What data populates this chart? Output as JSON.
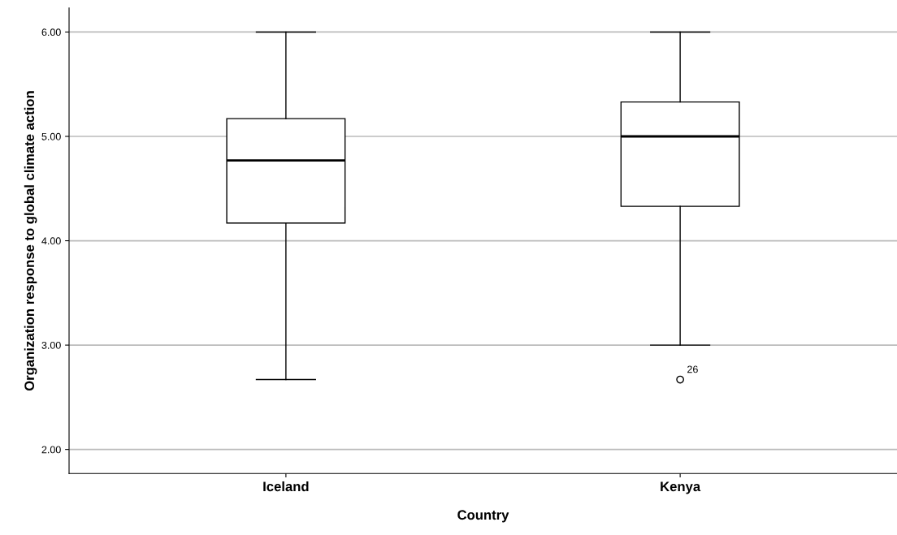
{
  "chart_data": {
    "type": "box",
    "xlabel": "Country",
    "ylabel": "Organization response to global climate action",
    "categories": [
      "Iceland",
      "Kenya"
    ],
    "boxes": [
      {
        "low": 2.67,
        "q1": 4.17,
        "median": 4.77,
        "q3": 5.17,
        "high": 6.0
      },
      {
        "low": 3.0,
        "q1": 4.33,
        "median": 5.0,
        "q3": 5.33,
        "high": 6.0,
        "outliers": [
          2.67
        ]
      }
    ],
    "ylim": [
      1.77,
      6.23
    ],
    "yticks": [
      {
        "value": 2,
        "label": "2.00"
      },
      {
        "value": 3,
        "label": "3.00"
      },
      {
        "value": 4,
        "label": "4.00"
      },
      {
        "value": 5,
        "label": "5.00"
      },
      {
        "value": 6,
        "label": "6.00"
      }
    ],
    "grid": "y",
    "annotations": [
      "26"
    ]
  }
}
